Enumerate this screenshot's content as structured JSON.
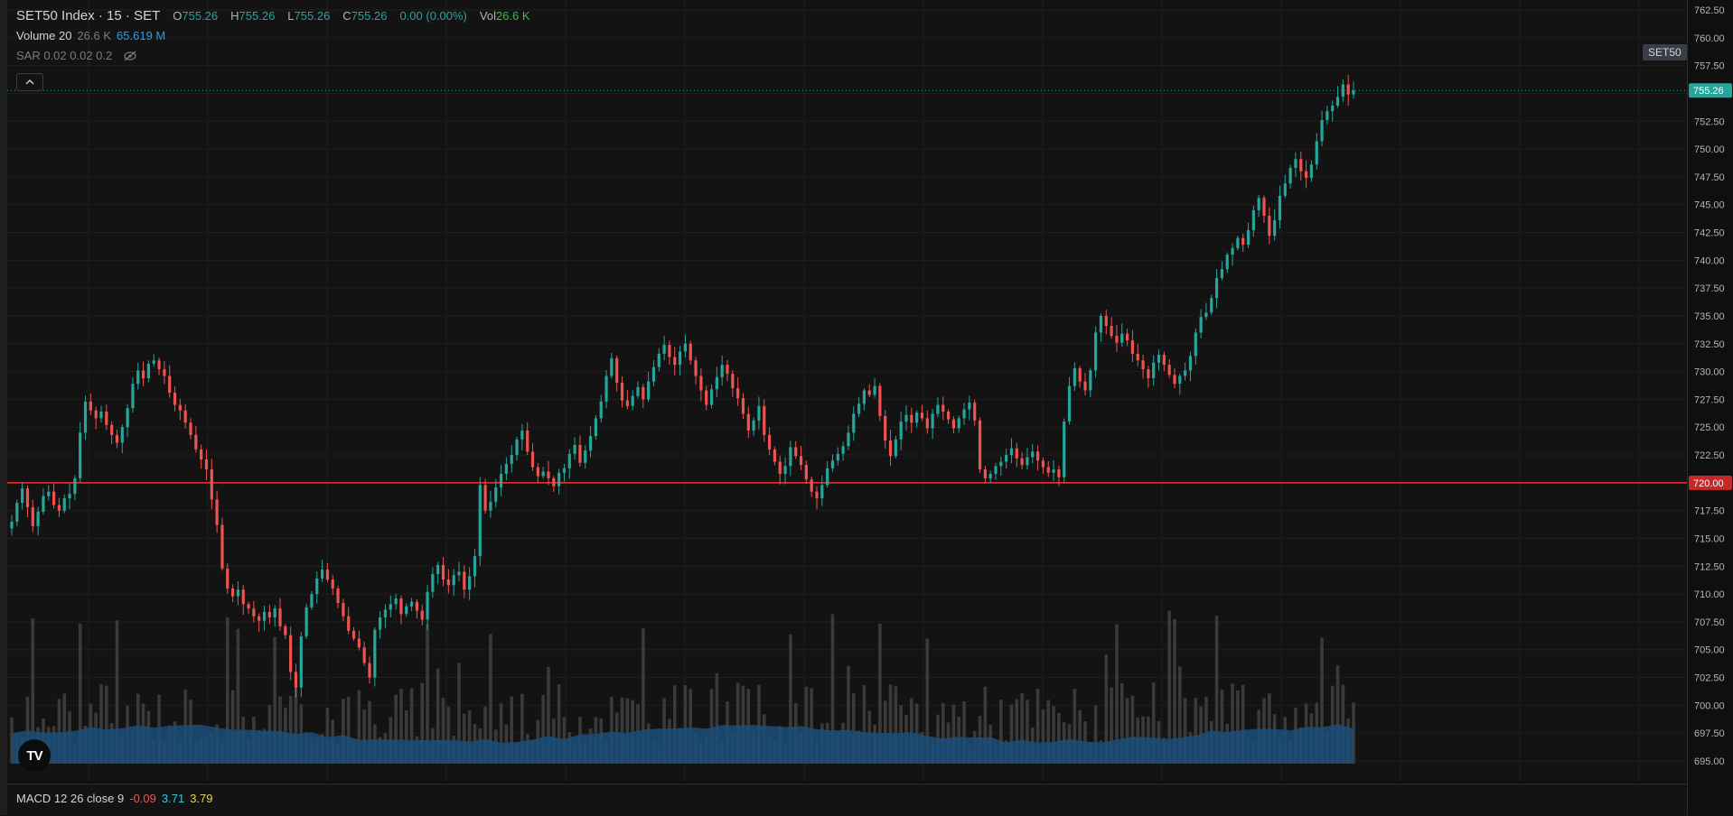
{
  "legend": {
    "title": "SET50 Index · 15 · SET",
    "ohlc": [
      {
        "label": "O",
        "value": "755.26"
      },
      {
        "label": "H",
        "value": "755.26"
      },
      {
        "label": "L",
        "value": "755.26"
      },
      {
        "label": "C",
        "value": "755.26"
      }
    ],
    "change": "0.00 (0.00%)",
    "vol_label": "Vol",
    "vol_value": "26.6 K",
    "volume_name": "Volume 20",
    "volume_value": "26.6 K",
    "volume_ma": "65.619 M",
    "sar": "SAR 0.02 0.02 0.2",
    "collapse_icon": "chevron-up-icon",
    "hide_icon": "eye-off-icon"
  },
  "symbol_tag": "SET50",
  "price_scale": [
    "762.50",
    "760.00",
    "757.50",
    "755.00",
    "752.50",
    "750.00",
    "747.50",
    "745.00",
    "742.50",
    "740.00",
    "737.50",
    "735.00",
    "732.50",
    "730.00",
    "727.50",
    "725.00",
    "722.50",
    "720.00",
    "717.50",
    "715.00",
    "712.50",
    "710.00",
    "707.50",
    "705.00",
    "702.50",
    "700.00",
    "697.50",
    "695.00"
  ],
  "last_price_label": "755.26",
  "alert_line_label": "720.00",
  "macd": {
    "name": "MACD 12 26 close 9",
    "v1": "-0.09",
    "v2": "3.71",
    "v3": "3.79"
  },
  "colors": {
    "up": "#26a69a",
    "down": "#ef5350",
    "alert": "#d32f2f",
    "volume": "#2a2e39",
    "volume_ma": "#1e5a8a"
  },
  "chart_data": {
    "type": "candlestick",
    "symbol": "SET50 Index",
    "interval": "15",
    "ylim": [
      692.5,
      763.5
    ],
    "horizontal_line": 720.0,
    "last_price": 755.26,
    "close_path": [
      716.5,
      718.2,
      719.5,
      717.8,
      716.1,
      717.4,
      718.8,
      719.2,
      718.0,
      717.5,
      718.6,
      719.0,
      720.4,
      724.5,
      727.3,
      726.5,
      725.8,
      726.4,
      725.2,
      724.3,
      723.6,
      725.0,
      726.7,
      728.9,
      730.1,
      729.4,
      730.7,
      731.0,
      730.2,
      729.6,
      728.1,
      727.0,
      726.5,
      725.4,
      724.3,
      723.0,
      722.1,
      721.2,
      718.5,
      716.2,
      712.3,
      710.5,
      709.8,
      710.4,
      709.1,
      708.7,
      708.0,
      707.6,
      708.4,
      707.9,
      708.7,
      707.1,
      706.3,
      703.0,
      701.6,
      706.2,
      708.8,
      710.0,
      711.4,
      712.2,
      711.3,
      710.5,
      709.2,
      708.0,
      706.7,
      706.0,
      705.2,
      703.8,
      702.5,
      706.8,
      707.9,
      708.6,
      709.1,
      709.6,
      708.2,
      708.9,
      709.3,
      708.5,
      707.7,
      710.2,
      711.8,
      712.6,
      711.3,
      710.8,
      711.7,
      712.0,
      710.4,
      711.6,
      713.4,
      719.8,
      717.5,
      718.3,
      719.6,
      720.8,
      721.7,
      722.5,
      723.9,
      724.7,
      722.8,
      721.4,
      720.6,
      721.0,
      720.4,
      719.7,
      720.9,
      721.3,
      722.6,
      723.4,
      721.8,
      722.9,
      724.2,
      725.8,
      727.3,
      729.6,
      731.2,
      729.0,
      727.4,
      726.9,
      727.8,
      728.6,
      727.5,
      729.1,
      730.4,
      731.6,
      732.4,
      731.3,
      730.6,
      731.8,
      732.5,
      731.0,
      729.6,
      728.3,
      727.0,
      728.4,
      729.5,
      730.6,
      729.8,
      728.5,
      727.6,
      726.2,
      724.7,
      725.6,
      726.9,
      724.3,
      723.0,
      721.9,
      720.8,
      721.5,
      723.2,
      722.4,
      721.6,
      720.3,
      719.2,
      718.6,
      719.8,
      721.3,
      722.0,
      722.6,
      723.3,
      724.5,
      726.2,
      727.1,
      728.3,
      727.9,
      728.7,
      726.0,
      723.8,
      722.4,
      723.9,
      725.5,
      726.1,
      725.4,
      726.3,
      725.8,
      724.9,
      726.2,
      727.0,
      726.4,
      725.7,
      724.9,
      725.8,
      726.6,
      727.2,
      725.6,
      721.2,
      720.4,
      720.8,
      721.5,
      721.9,
      722.5,
      723.1,
      722.2,
      721.6,
      722.3,
      722.8,
      722.0,
      721.4,
      720.9,
      721.2,
      720.5,
      725.5,
      728.7,
      730.3,
      729.1,
      728.3,
      730.1,
      733.5,
      735.0,
      734.1,
      733.2,
      732.6,
      733.4,
      732.8,
      731.6,
      731.0,
      730.2,
      729.4,
      730.8,
      731.5,
      730.6,
      729.7,
      728.9,
      729.6,
      730.1,
      731.4,
      733.5,
      734.9,
      735.3,
      736.6,
      738.4,
      739.2,
      740.5,
      741.1,
      742.0,
      741.4,
      742.7,
      744.5,
      745.6,
      744.0,
      742.2,
      743.6,
      745.8,
      746.9,
      748.3,
      749.1,
      748.0,
      747.4,
      748.6,
      750.7,
      752.6,
      753.4,
      753.9,
      754.7,
      755.8,
      754.9,
      755.26
    ]
  }
}
